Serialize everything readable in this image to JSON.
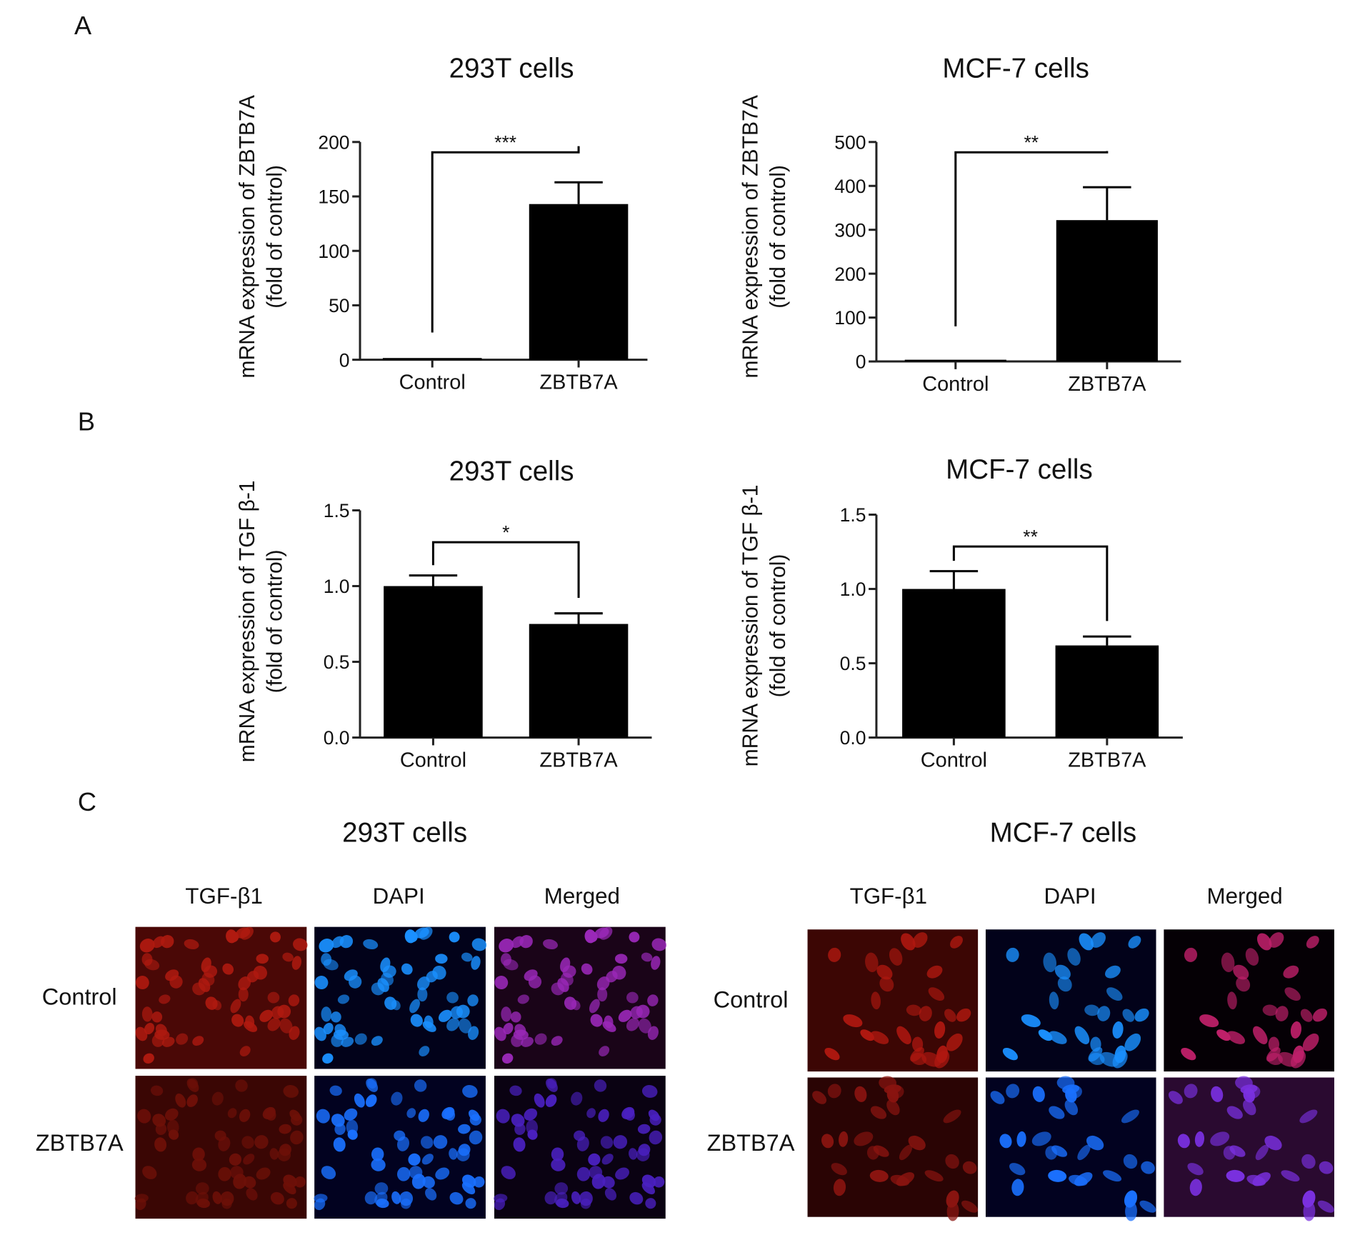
{
  "panel_labels": [
    "A",
    "B",
    "C"
  ],
  "chart_data": [
    {
      "type": "bar",
      "panel": "A",
      "title": "293T cells",
      "ylabel": "mRNA expression of  ZBTB7A",
      "ylabel2": "(fold of control)",
      "categories": [
        "Control",
        "ZBTB7A"
      ],
      "values": [
        1,
        143
      ],
      "errors": [
        0,
        20
      ],
      "ylim": [
        0,
        200
      ],
      "yticks": [
        "0",
        "50",
        "100",
        "150",
        "200"
      ],
      "significance": "***",
      "grid": false
    },
    {
      "type": "bar",
      "panel": "A",
      "title": "MCF-7 cells",
      "ylabel": "mRNA expression of  ZBTB7A",
      "ylabel2": "(fold of control)",
      "categories": [
        "Control",
        "ZBTB7A"
      ],
      "values": [
        1,
        322
      ],
      "errors": [
        0,
        75
      ],
      "ylim": [
        0,
        500
      ],
      "yticks": [
        "0",
        "100",
        "200",
        "300",
        "400",
        "500"
      ],
      "significance": "**",
      "grid": false
    },
    {
      "type": "bar",
      "panel": "B",
      "title": "293T cells",
      "ylabel": "mRNA expression of TGF β-1",
      "ylabel2": "(fold of control)",
      "categories": [
        "Control",
        "ZBTB7A"
      ],
      "values": [
        1.0,
        0.75
      ],
      "errors": [
        0.07,
        0.07
      ],
      "ylim": [
        0,
        1.5
      ],
      "yticks": [
        "0.0",
        "0.5",
        "1.0",
        "1.5"
      ],
      "significance": "*",
      "grid": false
    },
    {
      "type": "bar",
      "panel": "B",
      "title": "MCF-7 cells",
      "ylabel": "mRNA expression of TGF β-1",
      "ylabel2": "(fold of control)",
      "categories": [
        "Control",
        "ZBTB7A"
      ],
      "values": [
        1.0,
        0.62
      ],
      "errors": [
        0.12,
        0.06
      ],
      "ylim": [
        0,
        1.5
      ],
      "yticks": [
        "0.0",
        "0.5",
        "1.0",
        "1.5"
      ],
      "significance": "**",
      "grid": false
    }
  ],
  "panel_c": {
    "groups": [
      {
        "title": "293T cells",
        "columns": [
          "TGF-β1",
          "DAPI",
          "Merged"
        ],
        "rows": [
          "Control",
          "ZBTB7A"
        ]
      },
      {
        "title": "MCF-7 cells",
        "columns": [
          "TGF-β1",
          "DAPI",
          "Merged"
        ],
        "rows": [
          "Control",
          "ZBTB7A"
        ]
      }
    ],
    "colors": {
      "tgf": "#c8180e",
      "dapi": "#1a8cff",
      "merged": "#b030c8"
    }
  }
}
